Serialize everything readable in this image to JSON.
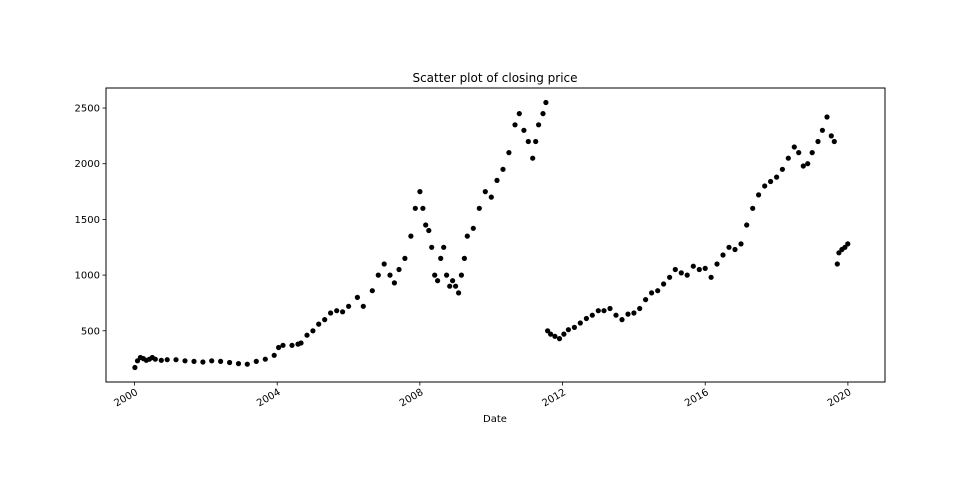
{
  "chart_data": {
    "type": "scatter",
    "title": "Scatter plot of closing price",
    "xlabel": "Date",
    "ylabel": "",
    "x_axis_type": "date",
    "xlim": [
      "1999-03-15",
      "2021-01-15"
    ],
    "ylim": [
      40,
      2680
    ],
    "x_ticks": [
      {
        "value": "2000-01-01",
        "label": "2000"
      },
      {
        "value": "2004-01-01",
        "label": "2004"
      },
      {
        "value": "2008-01-01",
        "label": "2008"
      },
      {
        "value": "2012-01-01",
        "label": "2012"
      },
      {
        "value": "2016-01-01",
        "label": "2016"
      },
      {
        "value": "2020-01-01",
        "label": "2020"
      }
    ],
    "y_ticks": [
      500,
      1000,
      1500,
      2000,
      2500
    ],
    "grid": false,
    "marker_color": "#000000",
    "series": [
      {
        "points": [
          [
            "2000-01-05",
            170
          ],
          [
            "2000-02-01",
            230
          ],
          [
            "2000-03-01",
            260
          ],
          [
            "2000-04-01",
            250
          ],
          [
            "2000-05-01",
            235
          ],
          [
            "2000-06-01",
            245
          ],
          [
            "2000-07-01",
            260
          ],
          [
            "2000-08-01",
            245
          ],
          [
            "2000-10-01",
            235
          ],
          [
            "2000-12-01",
            240
          ],
          [
            "2001-03-01",
            240
          ],
          [
            "2001-06-01",
            230
          ],
          [
            "2001-09-01",
            225
          ],
          [
            "2001-12-01",
            220
          ],
          [
            "2002-03-01",
            230
          ],
          [
            "2002-06-01",
            225
          ],
          [
            "2002-09-01",
            215
          ],
          [
            "2002-12-01",
            205
          ],
          [
            "2003-03-01",
            200
          ],
          [
            "2003-06-01",
            225
          ],
          [
            "2003-09-01",
            245
          ],
          [
            "2003-12-01",
            280
          ],
          [
            "2004-01-15",
            350
          ],
          [
            "2004-03-01",
            370
          ],
          [
            "2004-06-01",
            370
          ],
          [
            "2004-08-01",
            380
          ],
          [
            "2004-09-01",
            390
          ],
          [
            "2004-11-01",
            460
          ],
          [
            "2005-01-01",
            500
          ],
          [
            "2005-03-01",
            560
          ],
          [
            "2005-05-01",
            600
          ],
          [
            "2005-07-01",
            660
          ],
          [
            "2005-09-01",
            680
          ],
          [
            "2005-11-01",
            670
          ],
          [
            "2006-01-01",
            720
          ],
          [
            "2006-04-01",
            800
          ],
          [
            "2006-06-01",
            720
          ],
          [
            "2006-09-01",
            860
          ],
          [
            "2006-11-01",
            1000
          ],
          [
            "2007-01-01",
            1100
          ],
          [
            "2007-03-01",
            1000
          ],
          [
            "2007-04-15",
            930
          ],
          [
            "2007-06-01",
            1050
          ],
          [
            "2007-08-01",
            1150
          ],
          [
            "2007-10-01",
            1350
          ],
          [
            "2007-11-15",
            1600
          ],
          [
            "2008-01-01",
            1750
          ],
          [
            "2008-02-01",
            1600
          ],
          [
            "2008-03-01",
            1450
          ],
          [
            "2008-04-01",
            1400
          ],
          [
            "2008-05-01",
            1250
          ],
          [
            "2008-06-01",
            1000
          ],
          [
            "2008-07-01",
            950
          ],
          [
            "2008-08-01",
            1150
          ],
          [
            "2008-09-01",
            1250
          ],
          [
            "2008-10-01",
            1000
          ],
          [
            "2008-11-01",
            900
          ],
          [
            "2008-12-01",
            950
          ],
          [
            "2009-01-01",
            900
          ],
          [
            "2009-02-01",
            840
          ],
          [
            "2009-03-01",
            1000
          ],
          [
            "2009-04-01",
            1150
          ],
          [
            "2009-05-01",
            1350
          ],
          [
            "2009-07-01",
            1420
          ],
          [
            "2009-09-01",
            1600
          ],
          [
            "2009-11-01",
            1750
          ],
          [
            "2010-01-01",
            1700
          ],
          [
            "2010-03-01",
            1850
          ],
          [
            "2010-05-01",
            1950
          ],
          [
            "2010-07-01",
            2100
          ],
          [
            "2010-09-01",
            2350
          ],
          [
            "2010-10-15",
            2450
          ],
          [
            "2010-12-01",
            2300
          ],
          [
            "2011-01-15",
            2200
          ],
          [
            "2011-03-01",
            2050
          ],
          [
            "2011-04-01",
            2200
          ],
          [
            "2011-05-01",
            2350
          ],
          [
            "2011-06-15",
            2450
          ],
          [
            "2011-07-15",
            2550
          ],
          [
            "2011-08-01",
            500
          ],
          [
            "2011-09-01",
            470
          ],
          [
            "2011-10-15",
            450
          ],
          [
            "2011-12-01",
            430
          ],
          [
            "2012-01-15",
            470
          ],
          [
            "2012-03-01",
            510
          ],
          [
            "2012-05-01",
            530
          ],
          [
            "2012-07-01",
            570
          ],
          [
            "2012-09-01",
            610
          ],
          [
            "2012-11-01",
            640
          ],
          [
            "2013-01-01",
            680
          ],
          [
            "2013-03-01",
            680
          ],
          [
            "2013-05-01",
            700
          ],
          [
            "2013-07-01",
            640
          ],
          [
            "2013-09-01",
            600
          ],
          [
            "2013-11-01",
            650
          ],
          [
            "2014-01-01",
            660
          ],
          [
            "2014-03-01",
            700
          ],
          [
            "2014-05-01",
            780
          ],
          [
            "2014-07-01",
            840
          ],
          [
            "2014-09-01",
            860
          ],
          [
            "2014-11-01",
            920
          ],
          [
            "2015-01-01",
            980
          ],
          [
            "2015-03-01",
            1050
          ],
          [
            "2015-05-01",
            1020
          ],
          [
            "2015-07-01",
            1000
          ],
          [
            "2015-09-01",
            1080
          ],
          [
            "2015-11-01",
            1050
          ],
          [
            "2016-01-01",
            1060
          ],
          [
            "2016-03-01",
            980
          ],
          [
            "2016-05-01",
            1100
          ],
          [
            "2016-07-01",
            1180
          ],
          [
            "2016-09-01",
            1250
          ],
          [
            "2016-11-01",
            1230
          ],
          [
            "2017-01-01",
            1280
          ],
          [
            "2017-03-01",
            1450
          ],
          [
            "2017-05-01",
            1600
          ],
          [
            "2017-07-01",
            1720
          ],
          [
            "2017-09-01",
            1800
          ],
          [
            "2017-11-01",
            1840
          ],
          [
            "2018-01-01",
            1880
          ],
          [
            "2018-03-01",
            1950
          ],
          [
            "2018-05-01",
            2050
          ],
          [
            "2018-07-01",
            2150
          ],
          [
            "2018-08-15",
            2100
          ],
          [
            "2018-10-01",
            1980
          ],
          [
            "2018-11-15",
            2000
          ],
          [
            "2019-01-01",
            2100
          ],
          [
            "2019-03-01",
            2200
          ],
          [
            "2019-04-15",
            2300
          ],
          [
            "2019-06-01",
            2420
          ],
          [
            "2019-07-15",
            2250
          ],
          [
            "2019-08-15",
            2200
          ],
          [
            "2019-09-15",
            1100
          ],
          [
            "2019-10-01",
            1200
          ],
          [
            "2019-11-01",
            1230
          ],
          [
            "2019-12-01",
            1250
          ],
          [
            "2019-12-31",
            1280
          ]
        ]
      }
    ]
  }
}
